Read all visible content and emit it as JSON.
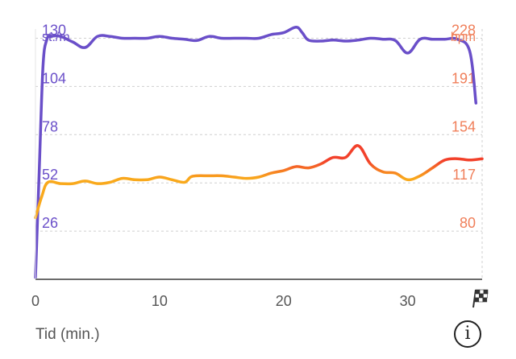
{
  "chart_data": {
    "type": "line",
    "xlabel": "Tid (min.)",
    "xlim": [
      0,
      36
    ],
    "x_ticks": [
      "0",
      "10",
      "20",
      "30"
    ],
    "finish_marker": "checkered-flag-icon",
    "left_axis": {
      "unit": "st./m",
      "ticks": [
        "26",
        "52",
        "78",
        "104",
        "130"
      ],
      "ylim": [
        0,
        135
      ],
      "color": "#6a4fc9"
    },
    "right_axis": {
      "unit": "bpm",
      "ticks": [
        "80",
        "117",
        "154",
        "191",
        "228"
      ],
      "ylim": [
        43,
        234
      ],
      "color": "#f07f5a"
    },
    "grid": true,
    "series": [
      {
        "axis": "left",
        "color": "#6a4fc9",
        "x": [
          0,
          0.3,
          0.6,
          0.9,
          1.3,
          2,
          3,
          4,
          5,
          6,
          7,
          8,
          9,
          10,
          11,
          12,
          13,
          14,
          15,
          16,
          17,
          18,
          19,
          20,
          21,
          21.5,
          22,
          23,
          24,
          25,
          26,
          27,
          28,
          29,
          30,
          31,
          32,
          33,
          34,
          35,
          35.5
        ],
        "values": [
          1,
          58,
          114,
          129,
          131,
          131,
          128,
          125,
          131,
          131,
          130,
          130,
          130,
          131,
          130,
          129.5,
          128.8,
          131,
          130,
          130,
          130,
          130,
          132,
          133,
          136,
          133,
          129,
          128.5,
          129,
          128.5,
          129,
          130,
          129.5,
          128.8,
          122,
          129.5,
          129.5,
          129.5,
          129.5,
          123,
          95
        ]
      },
      {
        "axis": "right",
        "color": "#f9a91c",
        "x": [
          0,
          0.5,
          1,
          2,
          3,
          4,
          5,
          6,
          7,
          8,
          9,
          10,
          11,
          12,
          12.5,
          13,
          14,
          15,
          16,
          17,
          18,
          19,
          20,
          21,
          22,
          23,
          24,
          25,
          26,
          27,
          28,
          29,
          30,
          31,
          32,
          33,
          34,
          35,
          36
        ],
        "values": [
          90,
          106,
          117,
          116,
          116,
          118,
          116,
          117,
          120,
          119,
          119,
          121,
          119,
          117,
          121,
          122,
          122,
          122,
          121,
          120,
          121,
          124,
          126,
          129,
          128,
          131,
          136,
          136,
          145,
          131,
          125,
          124,
          119,
          122,
          128,
          134,
          135,
          134,
          135
        ]
      }
    ]
  },
  "footer": {
    "xlabel": "Tid (min.)",
    "info_label": "i"
  }
}
